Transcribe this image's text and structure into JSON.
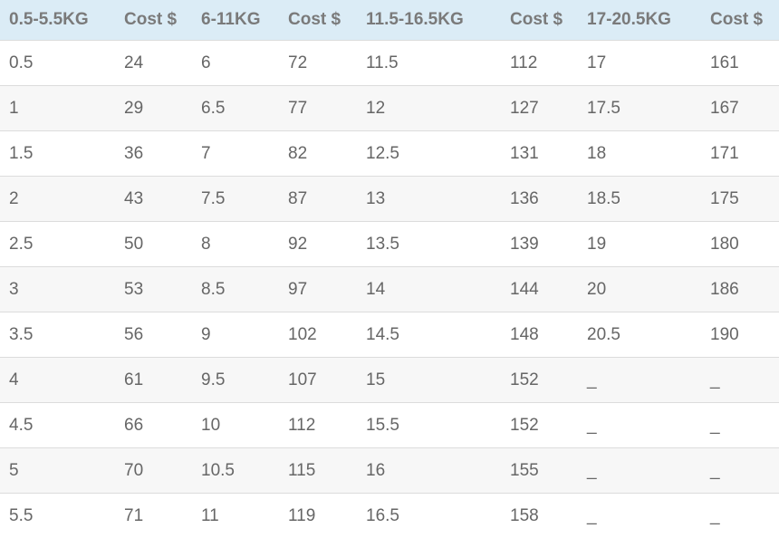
{
  "table": {
    "header": [
      "0.5-5.5KG",
      "Cost $",
      "6-11KG",
      "Cost $",
      "11.5-16.5KG",
      "Cost $",
      "17-20.5KG",
      "Cost $"
    ],
    "rows": [
      [
        "0.5",
        "24",
        "6",
        "72",
        "11.5",
        "112",
        "17",
        "161"
      ],
      [
        "1",
        "29",
        "6.5",
        "77",
        "12",
        "127",
        "17.5",
        "167"
      ],
      [
        "1.5",
        "36",
        "7",
        "82",
        "12.5",
        "131",
        "18",
        "171"
      ],
      [
        "2",
        "43",
        "7.5",
        "87",
        "13",
        "136",
        "18.5",
        "175"
      ],
      [
        "2.5",
        "50",
        "8",
        "92",
        "13.5",
        "139",
        "19",
        "180"
      ],
      [
        "3",
        "53",
        "8.5",
        "97",
        "14",
        "144",
        "20",
        "186"
      ],
      [
        "3.5",
        "56",
        "9",
        "102",
        "14.5",
        "148",
        "20.5",
        "190"
      ],
      [
        "4",
        "61",
        "9.5",
        "107",
        "15",
        "152",
        "_",
        "_"
      ],
      [
        "4.5",
        "66",
        "10",
        "112",
        "15.5",
        "152",
        "_",
        "_"
      ],
      [
        "5",
        "70",
        "10.5",
        "115",
        "16",
        "155",
        "_",
        "_"
      ],
      [
        "5.5",
        "71",
        "11",
        "119",
        "16.5",
        "158",
        "_",
        "_"
      ]
    ]
  }
}
